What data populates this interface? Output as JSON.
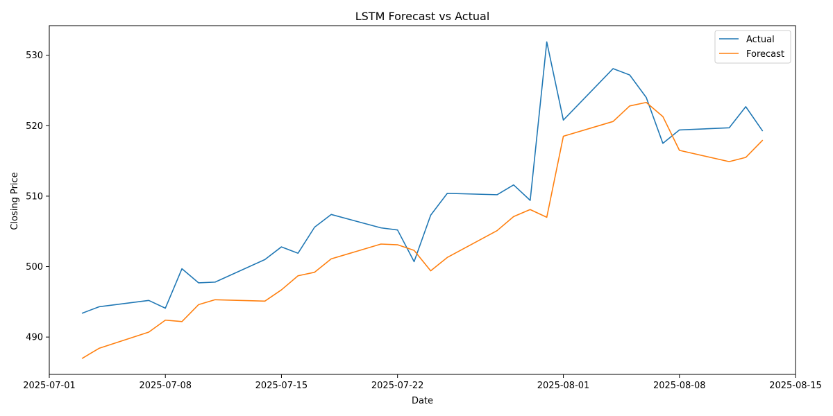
{
  "chart_data": {
    "type": "line",
    "title": "LSTM Forecast vs Actual",
    "xlabel": "Date",
    "ylabel": "Closing Price",
    "x": [
      "2025-07-03",
      "2025-07-04",
      "2025-07-07",
      "2025-07-08",
      "2025-07-09",
      "2025-07-10",
      "2025-07-11",
      "2025-07-14",
      "2025-07-15",
      "2025-07-16",
      "2025-07-17",
      "2025-07-18",
      "2025-07-21",
      "2025-07-22",
      "2025-07-23",
      "2025-07-24",
      "2025-07-25",
      "2025-07-28",
      "2025-07-29",
      "2025-07-30",
      "2025-07-31",
      "2025-08-01",
      "2025-08-04",
      "2025-08-05",
      "2025-08-06",
      "2025-08-07",
      "2025-08-08",
      "2025-08-11",
      "2025-08-12",
      "2025-08-13"
    ],
    "series": [
      {
        "name": "Actual",
        "color": "#1f77b4",
        "values": [
          493.4,
          494.3,
          495.2,
          494.1,
          499.7,
          497.7,
          497.8,
          501.0,
          502.8,
          501.9,
          505.6,
          507.4,
          505.5,
          505.2,
          500.7,
          507.3,
          510.4,
          510.2,
          511.6,
          509.4,
          531.9,
          520.8,
          528.1,
          527.2,
          524.0,
          517.5,
          519.4,
          519.7,
          522.7,
          519.3
        ]
      },
      {
        "name": "Forecast",
        "color": "#ff7f0e",
        "values": [
          487.0,
          488.4,
          490.7,
          492.4,
          492.2,
          494.6,
          495.3,
          495.1,
          496.7,
          498.7,
          499.2,
          501.1,
          503.2,
          503.1,
          502.3,
          499.4,
          501.3,
          505.1,
          507.1,
          508.1,
          507.0,
          518.5,
          520.6,
          522.8,
          523.3,
          521.3,
          516.5,
          514.9,
          515.5,
          517.9
        ]
      }
    ],
    "xlim": [
      "2025-07-01",
      "2025-08-15"
    ],
    "ylim": [
      484.7,
      534.2
    ],
    "xticks": [
      "2025-07-01",
      "2025-07-08",
      "2025-07-15",
      "2025-07-22",
      "2025-08-01",
      "2025-08-08",
      "2025-08-15"
    ],
    "yticks": [
      490,
      500,
      510,
      520,
      530
    ],
    "grid": false,
    "legend_position": "top-right"
  }
}
